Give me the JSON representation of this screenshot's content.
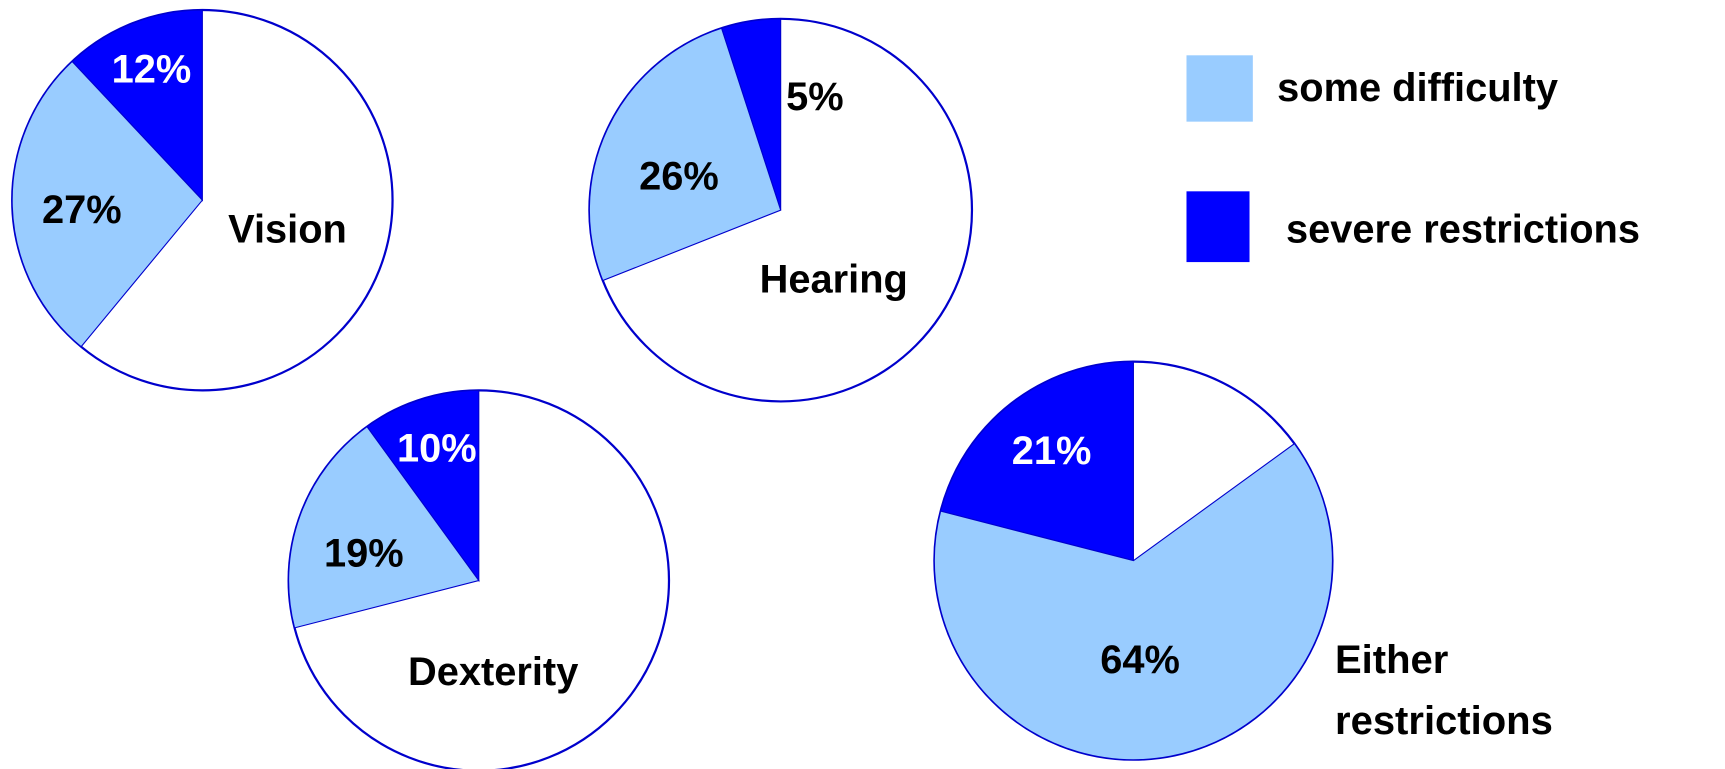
{
  "chart_data": [
    {
      "type": "pie",
      "title": "Vision",
      "categories": [
        "some difficulty",
        "severe restrictions"
      ],
      "values": [
        27,
        12
      ],
      "value_labels": [
        "27%",
        "12%"
      ],
      "colors": [
        "#99ccff",
        "#0000ff"
      ]
    },
    {
      "type": "pie",
      "title": "Hearing",
      "categories": [
        "some difficulty",
        "severe restrictions"
      ],
      "values": [
        26,
        5
      ],
      "value_labels": [
        "26%",
        "5%"
      ],
      "colors": [
        "#99ccff",
        "#0000ff"
      ]
    },
    {
      "type": "pie",
      "title": "Dexterity",
      "categories": [
        "some difficulty",
        "severe restrictions"
      ],
      "values": [
        19,
        10
      ],
      "value_labels": [
        "19%",
        "10%"
      ],
      "colors": [
        "#99ccff",
        "#0000ff"
      ]
    },
    {
      "type": "pie",
      "title": "Either restrictions",
      "categories": [
        "some difficulty",
        "severe restrictions"
      ],
      "values": [
        64,
        21
      ],
      "value_labels": [
        "64%",
        "21%"
      ],
      "colors": [
        "#99ccff",
        "#0000ff"
      ]
    }
  ]
}
